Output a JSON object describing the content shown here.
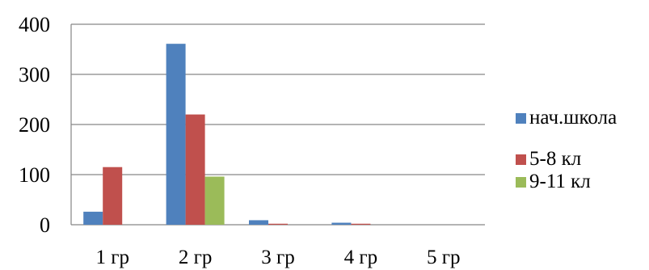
{
  "chart_data": {
    "type": "bar",
    "categories": [
      "1 гр",
      "2 гр",
      "3 гр",
      "4 гр",
      "5 гр"
    ],
    "series": [
      {
        "name": "нач.школа",
        "values": [
          26,
          361,
          9,
          4,
          0
        ],
        "color": "#4F81BD"
      },
      {
        "name": "5-8 кл",
        "values": [
          115,
          220,
          2,
          2,
          0
        ],
        "color": "#C0504D"
      },
      {
        "name": "9-11 кл",
        "values": [
          0,
          96,
          0,
          0,
          0
        ],
        "color": "#9BBB59"
      }
    ],
    "title": "",
    "xlabel": "",
    "ylabel": "",
    "ylim": [
      0,
      400
    ],
    "yticks": [
      0,
      100,
      200,
      300,
      400
    ],
    "grid": true,
    "legend_position": "right"
  }
}
